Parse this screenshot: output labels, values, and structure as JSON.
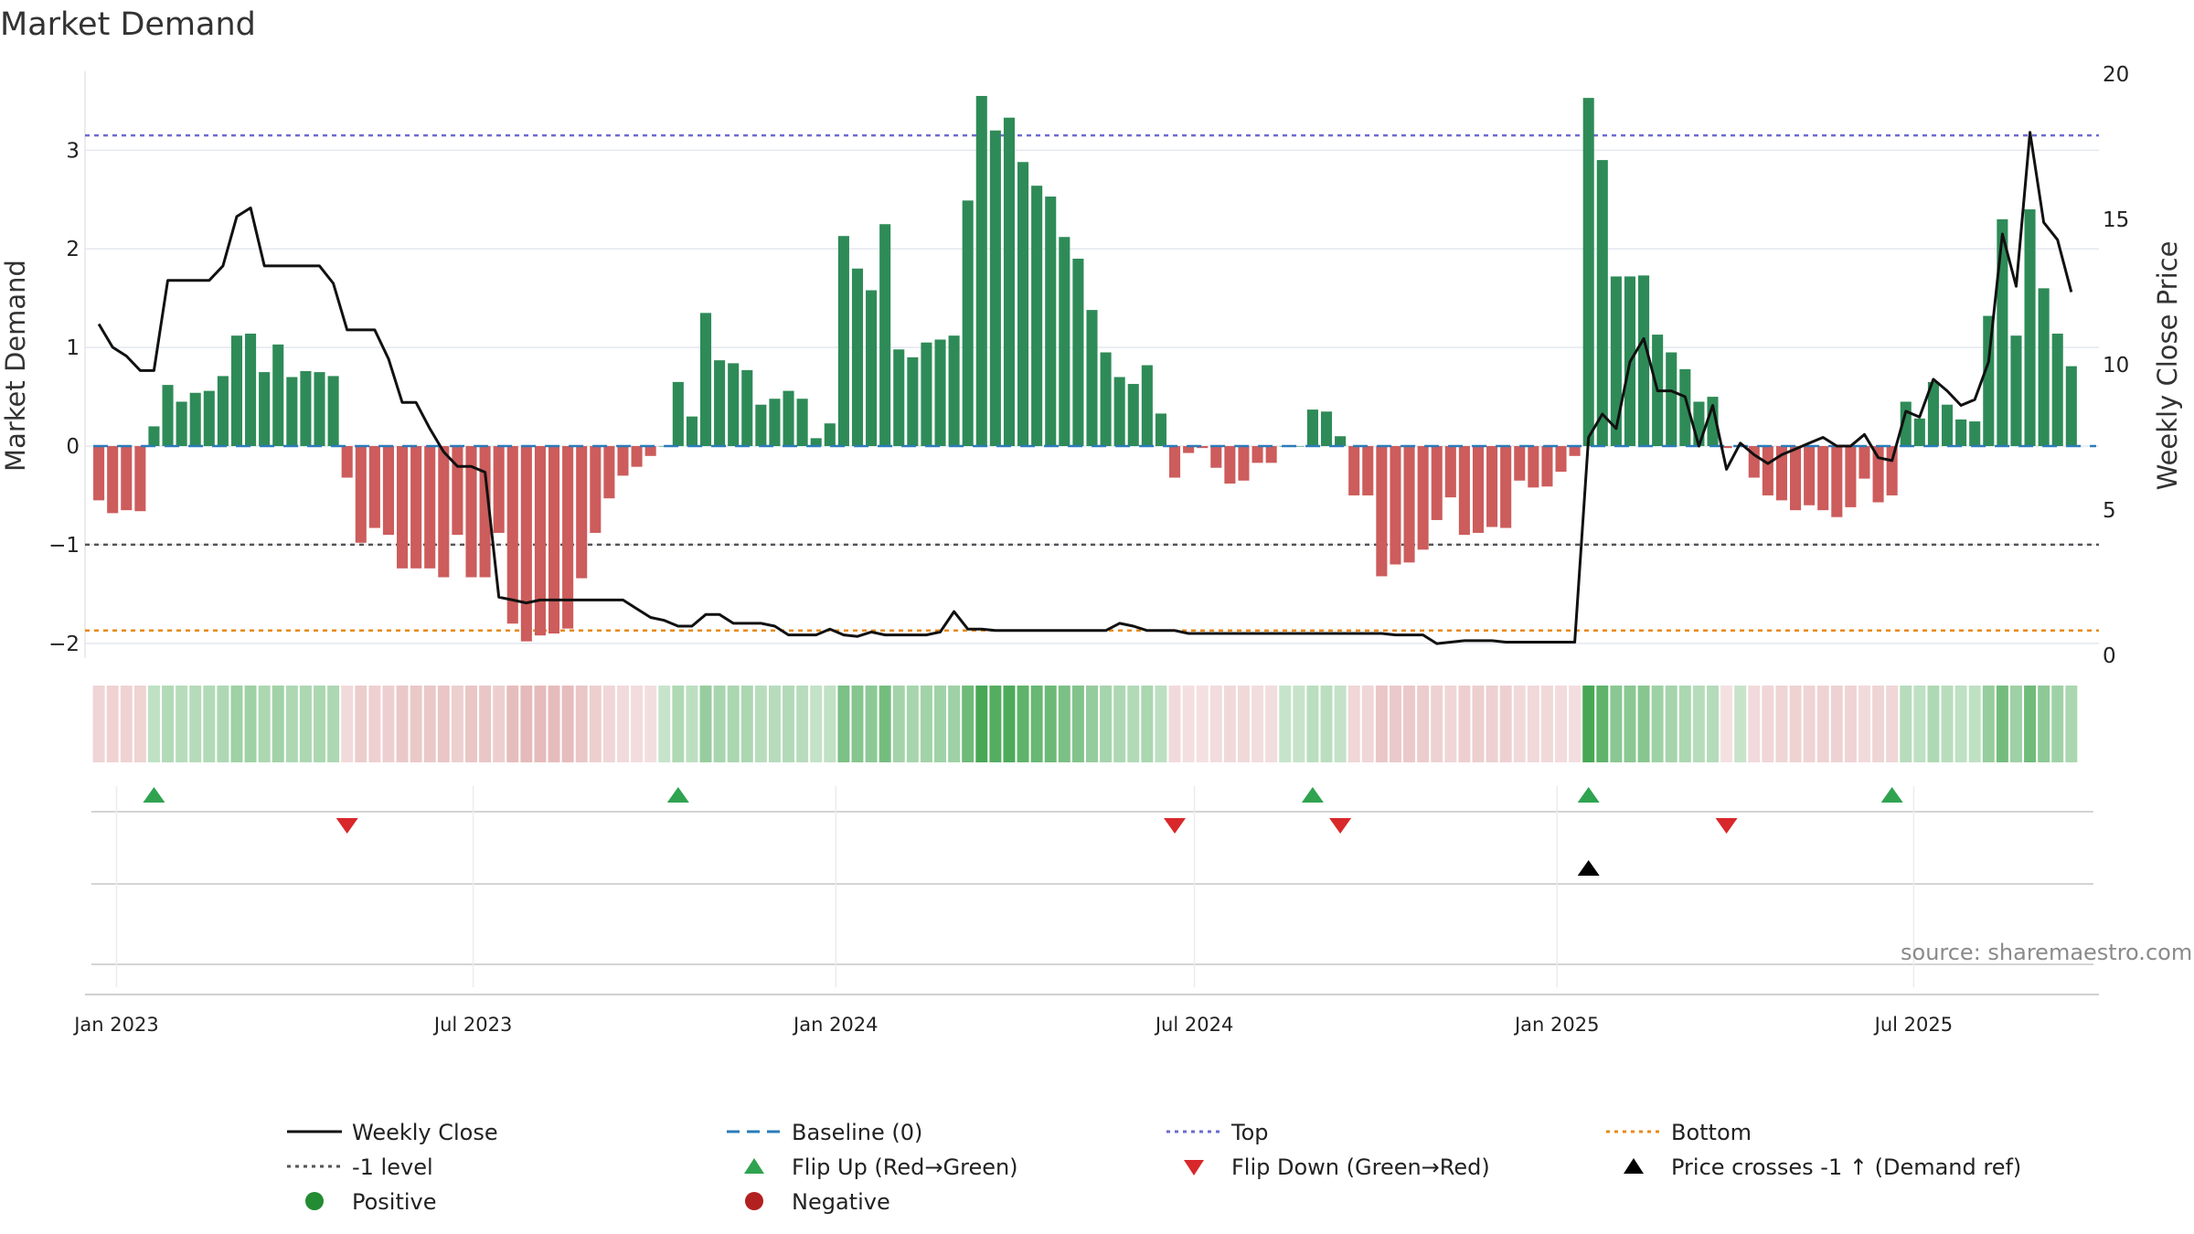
{
  "chart_data": {
    "type": "bar",
    "title": "Market Demand",
    "ylabel": "Market Demand",
    "y2label": "Weekly Close Price",
    "ylim": [
      -2.15,
      3.8
    ],
    "y2lim": [
      -0.1,
      20.1
    ],
    "yticks": [
      -2,
      -1,
      0,
      1,
      2,
      3
    ],
    "y2ticks": [
      0,
      5,
      10,
      15,
      20
    ],
    "ytick_labels": [
      "−2",
      "−1",
      "0",
      "1",
      "2",
      "3"
    ],
    "y2tick_labels": [
      "0",
      "5",
      "10",
      "15",
      "20"
    ],
    "date_start": "2022-12-23",
    "week_step_days": 7,
    "xlim": [
      "2022-12-16",
      "2025-10-03"
    ],
    "xtick_dates": [
      "2023-01-01",
      "2023-07-01",
      "2024-01-01",
      "2024-07-01",
      "2025-01-01",
      "2025-07-01"
    ],
    "xtick_labels": [
      "Jan 2023",
      "Jul 2023",
      "Jan 2024",
      "Jul 2024",
      "Jan 2025",
      "Jul 2025"
    ],
    "reference_lines": {
      "top": 3.15,
      "bottom": -1.87,
      "minus_one": -1.0,
      "baseline": 0
    },
    "series": [
      {
        "name": "Market Demand",
        "kind": "bar",
        "values": [
          -0.55,
          -0.68,
          -0.65,
          -0.66,
          0.2,
          0.62,
          0.45,
          0.54,
          0.56,
          0.71,
          1.12,
          1.14,
          0.75,
          1.03,
          0.7,
          0.76,
          0.75,
          0.71,
          -0.32,
          -0.98,
          -0.83,
          -0.9,
          -1.24,
          -1.24,
          -1.24,
          -1.33,
          -0.9,
          -1.33,
          -1.33,
          -0.88,
          -1.8,
          -1.98,
          -1.92,
          -1.9,
          -1.85,
          -1.34,
          -0.88,
          -0.53,
          -0.3,
          -0.21,
          -0.1,
          0.0,
          0.65,
          0.3,
          1.35,
          0.87,
          0.84,
          0.77,
          0.42,
          0.48,
          0.56,
          0.48,
          0.08,
          0.23,
          2.13,
          1.8,
          1.58,
          2.25,
          0.98,
          0.9,
          1.05,
          1.08,
          1.12,
          2.49,
          3.55,
          3.2,
          3.33,
          2.88,
          2.64,
          2.53,
          2.12,
          1.9,
          1.38,
          0.95,
          0.7,
          0.63,
          0.82,
          0.33,
          -0.32,
          -0.07,
          -0.02,
          -0.22,
          -0.38,
          -0.35,
          -0.17,
          -0.17,
          0.0,
          0.0,
          0.37,
          0.35,
          0.1,
          -0.5,
          -0.5,
          -1.32,
          -1.2,
          -1.18,
          -1.05,
          -0.75,
          -0.52,
          -0.9,
          -0.88,
          -0.82,
          -0.83,
          -0.35,
          -0.42,
          -0.41,
          -0.26,
          -0.1,
          3.53,
          2.9,
          1.72,
          1.72,
          1.73,
          1.13,
          0.95,
          0.78,
          0.45,
          0.5,
          -0.02,
          0.0,
          -0.32,
          -0.5,
          -0.55,
          -0.65,
          -0.6,
          -0.65,
          -0.72,
          -0.62,
          -0.33,
          -0.57,
          -0.5,
          0.45,
          0.28,
          0.65,
          0.42,
          0.27,
          0.25,
          1.32,
          2.3,
          1.12,
          2.4,
          1.6,
          1.14,
          0.81
        ]
      },
      {
        "name": "Weekly Close",
        "kind": "line",
        "values": [
          11.4,
          10.6,
          10.3,
          9.8,
          9.8,
          12.9,
          12.9,
          12.9,
          12.9,
          13.4,
          15.1,
          15.4,
          13.4,
          13.4,
          13.4,
          13.4,
          13.4,
          12.8,
          11.2,
          11.2,
          11.2,
          10.2,
          8.7,
          8.7,
          7.8,
          7.0,
          6.5,
          6.5,
          6.3,
          2.0,
          1.9,
          1.8,
          1.9,
          1.9,
          1.9,
          1.9,
          1.9,
          1.9,
          1.9,
          1.6,
          1.3,
          1.2,
          1.0,
          1.0,
          1.4,
          1.4,
          1.1,
          1.1,
          1.1,
          1.0,
          0.7,
          0.7,
          0.7,
          0.9,
          0.7,
          0.65,
          0.8,
          0.7,
          0.7,
          0.7,
          0.7,
          0.8,
          1.5,
          0.9,
          0.9,
          0.85,
          0.85,
          0.85,
          0.85,
          0.85,
          0.85,
          0.85,
          0.85,
          0.85,
          1.1,
          1.0,
          0.85,
          0.85,
          0.85,
          0.75,
          0.75,
          0.75,
          0.75,
          0.75,
          0.75,
          0.75,
          0.75,
          0.75,
          0.75,
          0.75,
          0.75,
          0.75,
          0.75,
          0.75,
          0.7,
          0.7,
          0.7,
          0.4,
          0.45,
          0.5,
          0.5,
          0.5,
          0.45,
          0.45,
          0.45,
          0.45,
          0.45,
          0.45,
          7.5,
          8.3,
          7.8,
          10.1,
          10.9,
          9.1,
          9.1,
          8.9,
          7.2,
          8.6,
          6.4,
          7.3,
          6.9,
          6.6,
          6.9,
          7.1,
          7.3,
          7.5,
          7.2,
          7.2,
          7.6,
          6.8,
          6.7,
          8.4,
          8.2,
          9.5,
          9.1,
          8.6,
          8.8,
          10.1,
          14.5,
          12.7,
          18.0,
          14.9,
          14.3,
          12.5
        ]
      }
    ],
    "flip_up_weeks": [
      4,
      42,
      88,
      108,
      130
    ],
    "flip_down_weeks": [
      18,
      78,
      90,
      118
    ],
    "price_cross_weeks": [
      108
    ],
    "legend": {
      "position": "bottom",
      "entries": [
        {
          "label": "Weekly Close",
          "marker": "solid-line",
          "color": "#111111"
        },
        {
          "label": "Baseline (0)",
          "marker": "dash-line",
          "color": "#2b7bb9"
        },
        {
          "label": "Top",
          "marker": "dot-line",
          "color": "#6b6bd0"
        },
        {
          "label": "Bottom",
          "marker": "dot-line",
          "color": "#e88a1a"
        },
        {
          "label": "-1 level",
          "marker": "dot-line",
          "color": "#555555"
        },
        {
          "label": "Flip Up (Red→Green)",
          "marker": "triangle-up",
          "color": "#2fa350"
        },
        {
          "label": "Flip Down (Green→Red)",
          "marker": "triangle-down",
          "color": "#d8282b"
        },
        {
          "label": "Price crosses -1 ↑ (Demand ref)",
          "marker": "triangle-up",
          "color": "#000000"
        },
        {
          "label": "Positive",
          "marker": "circle",
          "color": "#238b32"
        },
        {
          "label": "Negative",
          "marker": "circle",
          "color": "#b2201f"
        }
      ]
    },
    "annotation": "source: sharemaestro.com"
  },
  "colors": {
    "positive_bar": "#2e8b57",
    "negative_bar": "#cd5c5c",
    "heat_positive": "#45a652",
    "heat_negative": "#d9999a",
    "price_line": "#111111",
    "grid": "#e4e8ef"
  }
}
